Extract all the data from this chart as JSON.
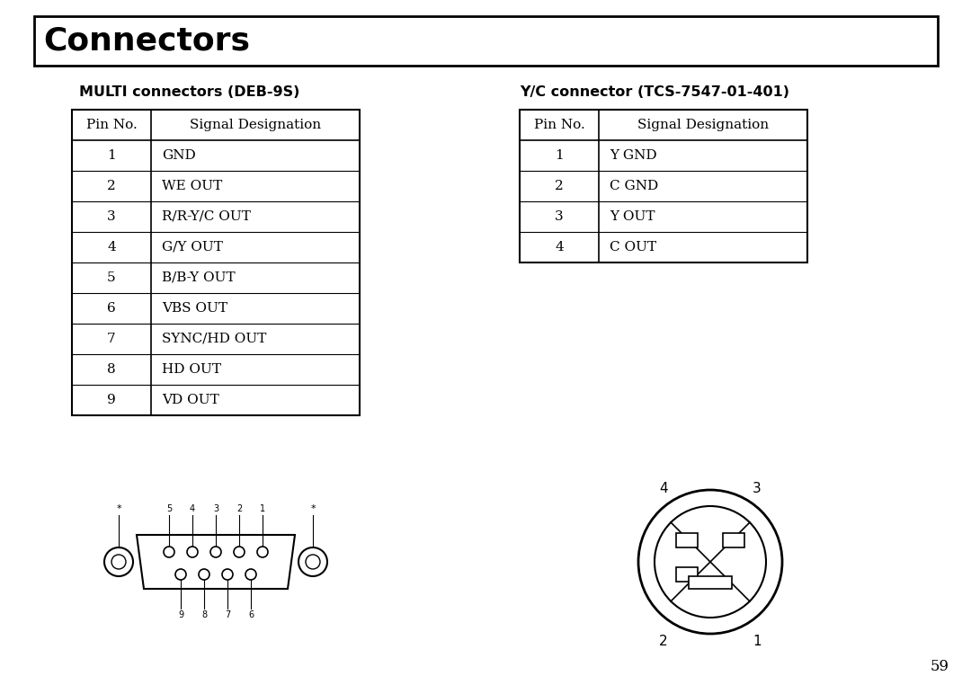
{
  "title": "Connectors",
  "left_subtitle": "MULTI connectors (DEB-9S)",
  "right_subtitle": "Y/C connector (TCS-7547-01-401)",
  "left_table_headers": [
    "Pin No.",
    "Signal Designation"
  ],
  "left_table_rows": [
    [
      "1",
      "GND"
    ],
    [
      "2",
      "WE OUT"
    ],
    [
      "3",
      "R/R-Y/C OUT"
    ],
    [
      "4",
      "G/Y OUT"
    ],
    [
      "5",
      "B/B-Y OUT"
    ],
    [
      "6",
      "VBS OUT"
    ],
    [
      "7",
      "SYNC/HD OUT"
    ],
    [
      "8",
      "HD OUT"
    ],
    [
      "9",
      "VD OUT"
    ]
  ],
  "right_table_headers": [
    "Pin No.",
    "Signal Designation"
  ],
  "right_table_rows": [
    [
      "1",
      "Y GND"
    ],
    [
      "2",
      "C GND"
    ],
    [
      "3",
      "Y OUT"
    ],
    [
      "4",
      "C OUT"
    ]
  ],
  "page_number": "59",
  "bg_color": "#ffffff",
  "text_color": "#000000"
}
